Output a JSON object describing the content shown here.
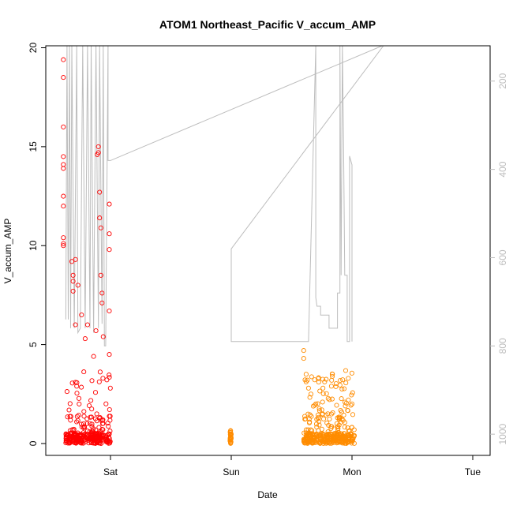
{
  "chart_data": {
    "type": "scatter",
    "title": "ATOM1 Northeast_Pacific V_accum_AMP",
    "xlabel": "Date",
    "ylabel": "V_accum_AMP",
    "x_ticks": [
      "Sat",
      "Sun",
      "Mon",
      "Tue"
    ],
    "x_range_days": [
      -0.45,
      3.13
    ],
    "ylim": [
      -0.6,
      20.1
    ],
    "y_ticks": [
      0,
      5,
      10,
      15,
      20
    ],
    "y2_ticks": [
      200,
      400,
      600,
      800,
      1000
    ],
    "y2lim": [
      1048,
      120
    ],
    "grid": false,
    "legend": "none",
    "colors": {
      "series_red": "#ff0000",
      "series_orange": "#ff8c00",
      "line_gray": "#bdbdbd",
      "axis": "#000000"
    },
    "series": [
      {
        "color": "#ff0000",
        "segments": [
          [
            -0.37,
            -0.06
          ],
          [
            -0.04,
            0.0
          ]
        ],
        "high_outliers": [
          [
            -0.39,
            19.4
          ],
          [
            -0.39,
            18.5
          ],
          [
            -0.39,
            16.0
          ],
          [
            -0.39,
            14.5
          ],
          [
            -0.39,
            14.1
          ],
          [
            -0.39,
            13.9
          ],
          [
            -0.39,
            12.5
          ],
          [
            -0.39,
            12.0
          ],
          [
            -0.39,
            10.4
          ],
          [
            -0.39,
            10.1
          ],
          [
            -0.39,
            10.0
          ],
          [
            -0.32,
            9.2
          ],
          [
            -0.31,
            8.5
          ],
          [
            -0.31,
            8.2
          ],
          [
            -0.31,
            7.7
          ],
          [
            -0.29,
            9.3
          ],
          [
            -0.29,
            6.0
          ],
          [
            -0.27,
            8.0
          ],
          [
            -0.24,
            6.5
          ],
          [
            -0.21,
            5.3
          ],
          [
            -0.19,
            6.0
          ],
          [
            -0.14,
            4.4
          ],
          [
            -0.12,
            5.7
          ],
          [
            -0.11,
            14.6
          ],
          [
            -0.1,
            15.0
          ],
          [
            -0.1,
            14.7
          ],
          [
            -0.09,
            12.7
          ],
          [
            -0.09,
            11.4
          ],
          [
            -0.08,
            10.9
          ],
          [
            -0.08,
            8.5
          ],
          [
            -0.07,
            7.6
          ],
          [
            -0.07,
            7.1
          ],
          [
            -0.06,
            5.4
          ],
          [
            -0.01,
            12.1
          ],
          [
            -0.01,
            10.6
          ],
          [
            -0.01,
            9.8
          ],
          [
            -0.01,
            6.7
          ],
          [
            -0.01,
            4.5
          ]
        ]
      },
      {
        "color": "#ff8c00",
        "segments": [
          [
            0.99,
            1.0
          ],
          [
            1.6,
            2.02
          ]
        ],
        "high_outliers": [
          [
            1.6,
            4.7
          ],
          [
            1.6,
            4.3
          ],
          [
            1.62,
            3.5
          ],
          [
            1.63,
            3.2
          ],
          [
            1.64,
            2.8
          ],
          [
            1.66,
            2.5
          ],
          [
            1.7,
            2.0
          ],
          [
            1.75,
            1.7
          ],
          [
            1.8,
            1.5
          ],
          [
            1.88,
            1.3
          ],
          [
            1.97,
            2.2
          ],
          [
            2.0,
            2.0
          ]
        ]
      }
    ],
    "line_series": {
      "axis": "right",
      "color": "#bdbdbd",
      "points": [
        [
          -0.37,
          740
        ],
        [
          -0.36,
          120
        ],
        [
          -0.35,
          740
        ],
        [
          -0.34,
          120
        ],
        [
          -0.33,
          760
        ],
        [
          -0.32,
          120
        ],
        [
          -0.3,
          760
        ],
        [
          -0.28,
          120
        ],
        [
          -0.27,
          770
        ],
        [
          -0.25,
          760
        ],
        [
          -0.23,
          120
        ],
        [
          -0.21,
          760
        ],
        [
          -0.19,
          120
        ],
        [
          -0.17,
          760
        ],
        [
          -0.16,
          120
        ],
        [
          -0.14,
          770
        ],
        [
          -0.12,
          120
        ],
        [
          -0.1,
          760
        ],
        [
          -0.09,
          120
        ],
        [
          -0.07,
          750
        ],
        [
          -0.06,
          120
        ],
        [
          -0.05,
          800
        ],
        [
          -0.04,
          800
        ],
        [
          -0.02,
          120
        ],
        [
          -0.02,
          380
        ],
        [
          0.0,
          380
        ],
        [
          2.25,
          120
        ],
        [
          2.26,
          120
        ],
        [
          1.0,
          580
        ],
        [
          1.0,
          790
        ],
        [
          1.64,
          790
        ],
        [
          1.7,
          120
        ],
        [
          1.7,
          690
        ],
        [
          1.71,
          710
        ],
        [
          1.74,
          710
        ],
        [
          1.74,
          730
        ],
        [
          1.81,
          730
        ],
        [
          1.81,
          760
        ],
        [
          1.88,
          760
        ],
        [
          1.88,
          680
        ],
        [
          1.9,
          680
        ],
        [
          1.9,
          120
        ],
        [
          1.91,
          640
        ],
        [
          1.92,
          120
        ],
        [
          1.93,
          340
        ],
        [
          1.94,
          640
        ],
        [
          1.96,
          640
        ],
        [
          1.96,
          790
        ],
        [
          1.98,
          790
        ],
        [
          1.98,
          370
        ],
        [
          2.0,
          390
        ],
        [
          2.0,
          790
        ]
      ]
    }
  }
}
